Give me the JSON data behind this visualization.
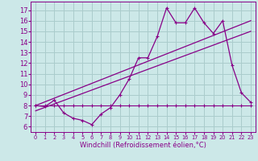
{
  "xlabel": "Windchill (Refroidissement éolien,°C)",
  "background_color": "#cce8e8",
  "grid_color": "#aacccc",
  "line_color": "#880088",
  "x": [
    0,
    1,
    2,
    3,
    4,
    5,
    6,
    7,
    8,
    9,
    10,
    11,
    12,
    13,
    14,
    15,
    16,
    17,
    18,
    19,
    20,
    21,
    22,
    23
  ],
  "line1": [
    8.0,
    7.9,
    8.5,
    7.3,
    6.8,
    6.6,
    6.2,
    7.2,
    7.8,
    9.0,
    10.5,
    12.5,
    12.5,
    14.5,
    17.2,
    15.8,
    15.8,
    17.2,
    15.8,
    14.8,
    16.0,
    11.8,
    9.2,
    8.3
  ],
  "line2": [
    8.0,
    8.0,
    8.0,
    8.0,
    8.0,
    8.0,
    8.0,
    8.0,
    8.0,
    8.0,
    8.0,
    8.0,
    8.0,
    8.0,
    8.0,
    8.0,
    8.0,
    8.0,
    8.0,
    8.0,
    8.0,
    8.0,
    8.0,
    8.0
  ],
  "line3_x": [
    0,
    23
  ],
  "line3_y": [
    8.0,
    16.0
  ],
  "line4_x": [
    0,
    23
  ],
  "line4_y": [
    7.5,
    15.0
  ],
  "ylim": [
    5.5,
    17.8
  ],
  "xlim": [
    -0.5,
    23.5
  ],
  "yticks": [
    6,
    7,
    8,
    9,
    10,
    11,
    12,
    13,
    14,
    15,
    16,
    17
  ],
  "xticks": [
    0,
    1,
    2,
    3,
    4,
    5,
    6,
    7,
    8,
    9,
    10,
    11,
    12,
    13,
    14,
    15,
    16,
    17,
    18,
    19,
    20,
    21,
    22,
    23
  ],
  "xlabel_fontsize": 6.0,
  "tick_fontsize_x": 4.8,
  "tick_fontsize_y": 6.0
}
